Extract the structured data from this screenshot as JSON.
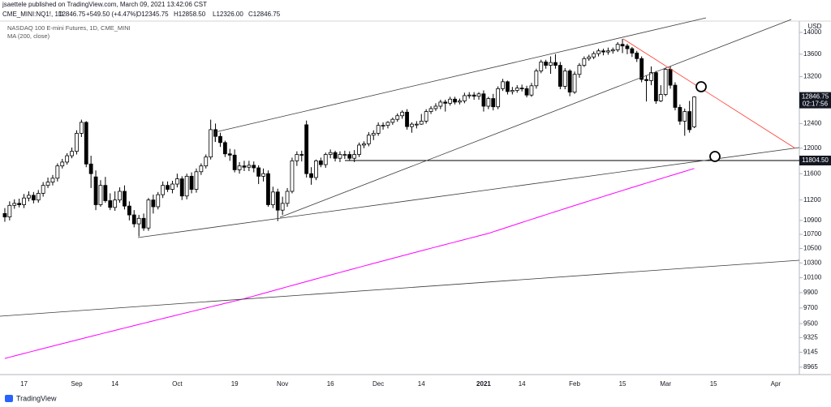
{
  "published_by": "jsaettele published on TradingView.com, March 09, 2021 13:42:06 CST",
  "legend_line": {
    "symbol": "CME_MINI:NQ1!, 1D",
    "last": "12846.75",
    "change": "+549.50 (+4.47%)",
    "ohlc": [
      "O12345.75",
      "H12858.50",
      "L12326.00",
      "C12846.75"
    ]
  },
  "brand": "TradingView",
  "chart_data": {
    "type": "candlestick",
    "title": "NASDAQ 100 E-mini Futures, 1D, CME_MINI",
    "currency": "USD",
    "log_scale": true,
    "grid": false,
    "up_color": "#ffffff",
    "down_color": "#000000",
    "wick_color": "#000000",
    "ylim": [
      8877,
      14492
    ],
    "yticks": [
      8965,
      9145,
      9325,
      9500,
      9700,
      9900,
      10100,
      10300,
      10500,
      10700,
      10900,
      11200,
      11600,
      12000,
      12400,
      13200,
      13600,
      14000
    ],
    "hline": {
      "value": 11804.5,
      "label": "11804.50"
    },
    "countdown": "02:17:56",
    "categories": [
      null,
      null,
      null,
      null,
      "17",
      null,
      null,
      null,
      null,
      null,
      null,
      null,
      null,
      null,
      null,
      "Sep",
      null,
      null,
      null,
      null,
      null,
      null,
      null,
      "14",
      null,
      null,
      null,
      null,
      null,
      null,
      null,
      null,
      null,
      null,
      null,
      null,
      "Oct",
      null,
      null,
      null,
      null,
      null,
      null,
      null,
      null,
      null,
      null,
      null,
      "19",
      null,
      null,
      null,
      null,
      null,
      null,
      null,
      null,
      null,
      "Nov",
      null,
      null,
      null,
      null,
      null,
      null,
      null,
      null,
      null,
      "16",
      null,
      null,
      null,
      null,
      null,
      null,
      null,
      null,
      null,
      "Dec",
      null,
      null,
      null,
      null,
      null,
      null,
      null,
      null,
      "14",
      null,
      null,
      null,
      null,
      null,
      null,
      null,
      null,
      null,
      null,
      null,
      null,
      "2021",
      null,
      null,
      null,
      null,
      null,
      null,
      null,
      "14",
      null,
      null,
      null,
      null,
      null,
      null,
      null,
      null,
      null,
      null,
      "Feb",
      null,
      null,
      null,
      null,
      null,
      null,
      null,
      null,
      null,
      "15",
      null,
      null,
      null,
      null,
      null,
      null,
      null,
      null,
      "Mar",
      null,
      null,
      null,
      null,
      null,
      null,
      null,
      null,
      null,
      "15",
      null,
      null,
      null,
      null,
      null,
      null,
      null,
      null,
      null,
      null,
      null,
      null,
      "Apr",
      null,
      null,
      null,
      null
    ],
    "open": [
      11000,
      10950,
      11120,
      11150,
      11130,
      11230,
      11270,
      11200,
      11300,
      11420,
      11470,
      11530,
      11720,
      11780,
      11880,
      11950,
      12240,
      12420,
      11750,
      11550,
      11130,
      11420,
      11190,
      11090,
      11200,
      11330,
      11110,
      10980,
      10850,
      10930,
      10790,
      11200,
      11100,
      11280,
      11420,
      11360,
      11440,
      11520,
      11260,
      11560,
      11360,
      11630,
      11720,
      11860,
      12300,
      12190,
      12090,
      11910,
      11890,
      11660,
      11720,
      11700,
      11730,
      11690,
      11560,
      11600,
      11130,
      11320,
      11050,
      11150,
      11330,
      11800,
      11900,
      12380,
      11600,
      11540,
      11800,
      11740,
      11900,
      11930,
      11840,
      11900,
      11900,
      11840,
      11900,
      12050,
      12070,
      12210,
      12240,
      12370,
      12370,
      12420,
      12470,
      12530,
      12590,
      12350,
      12390,
      12390,
      12440,
      12600,
      12650,
      12690,
      12760,
      12740,
      12810,
      12760,
      12780,
      12870,
      12880,
      12860,
      12900,
      12690,
      12820,
      12680,
      12990,
      13110,
      12940,
      12960,
      13000,
      12990,
      12880,
      13040,
      13300,
      13460,
      13400,
      13450,
      13400,
      13030,
      13300,
      12930,
      13240,
      13400,
      13520,
      13550,
      13610,
      13660,
      13640,
      13660,
      13680,
      13780,
      13750,
      13700,
      13620,
      13520,
      13150,
      13130,
      13270,
      12780,
      12890,
      13330,
      13050,
      12670,
      12440,
      12600,
      12345.75,
      null,
      null,
      null,
      null,
      null,
      null,
      null,
      null,
      null,
      null,
      null,
      null,
      null,
      null,
      null,
      null,
      null,
      null,
      null,
      null,
      null
    ],
    "high": [
      11080,
      11180,
      11210,
      11220,
      11290,
      11330,
      11320,
      11350,
      11470,
      11540,
      11580,
      11760,
      11830,
      11920,
      12010,
      12290,
      12465,
      12440,
      11880,
      11650,
      11500,
      11550,
      11300,
      11330,
      11390,
      11420,
      11180,
      11050,
      10980,
      11000,
      11230,
      11280,
      11320,
      11480,
      11480,
      11490,
      11600,
      11560,
      11600,
      11620,
      11680,
      11760,
      11900,
      12465,
      12400,
      12250,
      12120,
      11990,
      11980,
      11780,
      11800,
      11800,
      11790,
      11730,
      11680,
      11650,
      11400,
      11370,
      11250,
      11380,
      11850,
      11950,
      11960,
      12450,
      11700,
      11820,
      11850,
      11930,
      11980,
      11960,
      11950,
      11960,
      11950,
      11970,
      12090,
      12110,
      12260,
      12290,
      12420,
      12420,
      12440,
      12500,
      12570,
      12620,
      12640,
      12420,
      12440,
      12560,
      12640,
      12690,
      12740,
      12800,
      12800,
      12850,
      12850,
      12820,
      12920,
      12930,
      12930,
      12930,
      12960,
      12850,
      12900,
      13030,
      13160,
      13130,
      13020,
      13050,
      13060,
      13040,
      13090,
      13340,
      13500,
      13500,
      13560,
      13600,
      13460,
      13350,
      13330,
      13290,
      13440,
      13560,
      13590,
      13650,
      13700,
      13700,
      13720,
      13720,
      13820,
      13880,
      13790,
      13730,
      13660,
      13560,
      13220,
      13380,
      13300,
      13050,
      13360,
      13380,
      13100,
      12720,
      12650,
      12780,
      12858.5,
      null,
      null,
      null,
      null,
      null,
      null,
      null,
      null,
      null,
      null,
      null,
      null,
      null,
      null,
      null,
      null,
      null,
      null,
      null,
      null,
      null
    ],
    "low": [
      10880,
      10900,
      11070,
      11090,
      11080,
      11180,
      11150,
      11160,
      11250,
      11380,
      11420,
      11480,
      11680,
      11740,
      11840,
      11900,
      12180,
      11700,
      11380,
      11050,
      11100,
      11160,
      11050,
      11040,
      11160,
      11060,
      10900,
      10800,
      10670,
      10750,
      10750,
      11000,
      11060,
      11230,
      11320,
      11300,
      11390,
      11200,
      11210,
      11300,
      11310,
      11580,
      11680,
      11820,
      12100,
      12020,
      11860,
      11800,
      11620,
      11600,
      11640,
      11640,
      11620,
      11440,
      11480,
      11100,
      11080,
      10890,
      10980,
      11100,
      11300,
      11720,
      11790,
      11540,
      11430,
      11500,
      11700,
      11690,
      11840,
      11790,
      11780,
      11830,
      11800,
      11780,
      11860,
      12000,
      12030,
      12130,
      12200,
      12300,
      12320,
      12380,
      12430,
      12480,
      12300,
      12250,
      12320,
      12380,
      12400,
      12560,
      12610,
      12640,
      12600,
      12700,
      12720,
      12720,
      12740,
      12820,
      12800,
      12800,
      12600,
      12640,
      12620,
      12640,
      12950,
      12890,
      12890,
      12920,
      12940,
      12840,
      12850,
      12990,
      13260,
      13340,
      13250,
      13340,
      12980,
      12980,
      12860,
      12900,
      13180,
      13370,
      13480,
      13510,
      13560,
      13580,
      13590,
      13610,
      13640,
      13620,
      13600,
      13550,
      13460,
      13100,
      12770,
      13050,
      12730,
      12760,
      12860,
      12990,
      12620,
      12380,
      12200,
      12250,
      12326,
      null,
      null,
      null,
      null,
      null,
      null,
      null,
      null,
      null,
      null,
      null,
      null,
      null,
      null,
      null,
      null,
      null,
      null,
      null,
      null,
      null
    ],
    "close": [
      10950,
      11120,
      11150,
      11130,
      11230,
      11270,
      11200,
      11300,
      11420,
      11470,
      11530,
      11720,
      11780,
      11880,
      11950,
      12240,
      12420,
      11750,
      11600,
      11130,
      11420,
      11190,
      11090,
      11200,
      11330,
      11110,
      10980,
      10850,
      10930,
      10790,
      11200,
      11100,
      11280,
      11420,
      11360,
      11440,
      11520,
      11260,
      11560,
      11360,
      11630,
      11720,
      11860,
      12300,
      12190,
      12090,
      11910,
      11890,
      11660,
      11720,
      11700,
      11730,
      11690,
      11560,
      11600,
      11130,
      11320,
      11050,
      11150,
      11330,
      11800,
      11900,
      11890,
      11600,
      11540,
      11800,
      11740,
      11900,
      11930,
      11840,
      11900,
      11900,
      11840,
      11900,
      12050,
      12070,
      12210,
      12240,
      12370,
      12370,
      12420,
      12470,
      12530,
      12590,
      12350,
      12390,
      12390,
      12440,
      12600,
      12650,
      12690,
      12760,
      12740,
      12810,
      12760,
      12780,
      12870,
      12880,
      12860,
      12900,
      12690,
      12820,
      12680,
      12990,
      13110,
      12940,
      12960,
      13000,
      12990,
      12880,
      13040,
      13300,
      13460,
      13400,
      13450,
      13400,
      13030,
      13300,
      12930,
      13240,
      13400,
      13520,
      13550,
      13610,
      13660,
      13640,
      13660,
      13680,
      13780,
      13750,
      13700,
      13620,
      13520,
      13150,
      13130,
      13270,
      12780,
      12890,
      13330,
      13050,
      12670,
      12440,
      12600,
      12300,
      12846.75,
      null,
      null,
      null,
      null,
      null,
      null,
      null,
      null,
      null,
      null,
      null,
      null,
      null,
      null,
      null,
      null,
      null,
      null,
      null,
      null,
      null
    ],
    "series": [
      {
        "name": "MA (200, close)",
        "color": "#ff00ff",
        "values": [
          9070,
          9085,
          9100,
          9115,
          9130,
          9145,
          9160,
          9175,
          9190,
          9205,
          9220,
          9235,
          9250,
          9265,
          9280,
          9295,
          9310,
          9325,
          9340,
          9355,
          9370,
          9385,
          9400,
          9415,
          9430,
          9445,
          9460,
          9475,
          9490,
          9505,
          9520,
          9535,
          9550,
          9565,
          9580,
          9595,
          9610,
          9625,
          9640,
          9655,
          9670,
          9685,
          9700,
          9715,
          9730,
          9745,
          9760,
          9775,
          9790,
          9805,
          9820,
          9838,
          9855,
          9873,
          9890,
          9908,
          9925,
          9943,
          9960,
          9978,
          9995,
          10013,
          10030,
          10048,
          10065,
          10083,
          10100,
          10118,
          10135,
          10153,
          10170,
          10188,
          10205,
          10223,
          10240,
          10258,
          10275,
          10293,
          10310,
          10328,
          10345,
          10363,
          10380,
          10398,
          10415,
          10433,
          10450,
          10468,
          10485,
          10503,
          10520,
          10538,
          10555,
          10573,
          10590,
          10608,
          10625,
          10643,
          10660,
          10678,
          10695,
          10713,
          10735,
          10758,
          10780,
          10803,
          10825,
          10848,
          10870,
          10893,
          10915,
          10938,
          10960,
          10983,
          11005,
          11028,
          11050,
          11073,
          11095,
          11118,
          11140,
          11163,
          11185,
          11208,
          11230,
          11253,
          11275,
          11298,
          11320,
          11343,
          11365,
          11388,
          11410,
          11433,
          11455,
          11478,
          11500,
          11523,
          11545,
          11568,
          11590,
          11613,
          11635,
          11658,
          11680,
          null,
          null,
          null,
          null,
          null,
          null,
          null,
          null,
          null,
          null,
          null,
          null,
          null,
          null,
          null,
          null,
          null,
          null,
          null,
          null,
          null
        ]
      }
    ]
  }
}
